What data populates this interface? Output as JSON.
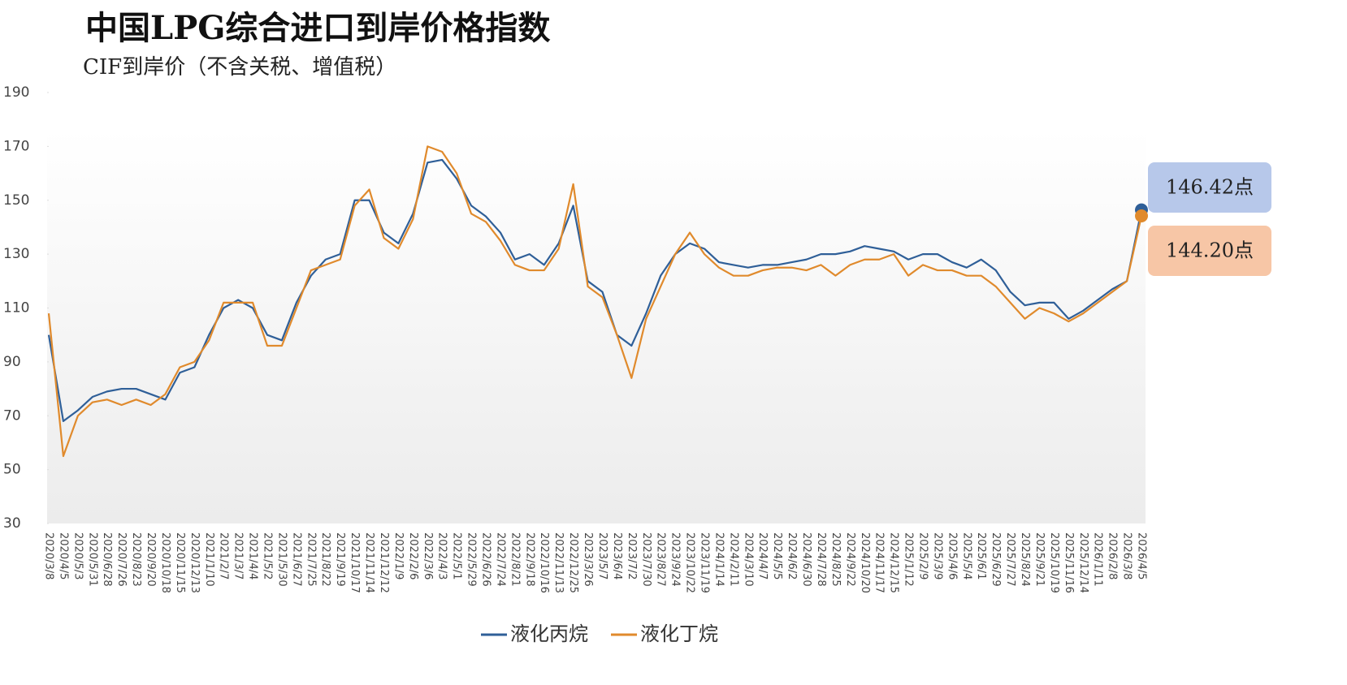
{
  "chart_data": {
    "type": "line",
    "title": "中国LPG综合进口到岸价格指数",
    "subtitle": "CIF到岸价（不含关税、增值税）",
    "categories": [
      "2020/3/8",
      "2020/4/5",
      "2020/5/3",
      "2020/5/31",
      "2020/6/28",
      "2020/7/26",
      "2020/8/23",
      "2020/9/20",
      "2020/10/18",
      "2020/11/15",
      "2020/12/13",
      "2021/1/10",
      "2021/2/7",
      "2021/3/7",
      "2021/4/4",
      "2021/5/2",
      "2021/5/30",
      "2021/6/27",
      "2021/7/25",
      "2021/8/22",
      "2021/9/19",
      "2021/10/17",
      "2021/11/14",
      "2021/12/12",
      "2022/1/9",
      "2022/2/6",
      "2022/3/6",
      "2022/4/3",
      "2022/5/1",
      "2022/5/29",
      "2022/6/26",
      "2022/7/24",
      "2022/8/21",
      "2022/9/18",
      "2022/10/16",
      "2022/11/13",
      "2022/12/25",
      "2023/3/26",
      "2023/5/7",
      "2023/6/4",
      "2023/7/2",
      "2023/7/30",
      "2023/8/27",
      "2023/9/24",
      "2023/10/22",
      "2023/11/19",
      "2024/1/14",
      "2024/2/11",
      "2024/3/10",
      "2024/4/7",
      "2024/5/5",
      "2024/6/2",
      "2024/6/30",
      "2024/7/28",
      "2024/8/25",
      "2024/9/22",
      "2024/10/20",
      "2024/11/17",
      "2024/12/15",
      "2025/1/12",
      "2025/2/9",
      "2025/3/9",
      "2025/4/6",
      "2025/5/4",
      "2025/6/1",
      "2025/6/29",
      "2025/7/27",
      "2025/8/24",
      "2025/9/21",
      "2025/10/19",
      "2025/11/16",
      "2025/12/14",
      "2026/1/11",
      "2026/2/8",
      "2026/3/8",
      "2026/4/5"
    ],
    "series": [
      {
        "name": "液化丙烷",
        "color": "#2f5f98",
        "label_color": "#b7c8ea",
        "values": [
          100,
          68,
          72,
          77,
          79,
          80,
          80,
          78,
          76,
          86,
          88,
          100,
          110,
          113,
          110,
          100,
          98,
          112,
          122,
          128,
          130,
          150,
          150,
          138,
          134,
          145,
          164,
          165,
          158,
          148,
          144,
          138,
          128,
          130,
          126,
          134,
          148,
          120,
          116,
          100,
          96,
          108,
          122,
          130,
          134,
          132,
          127,
          126,
          125,
          126,
          126,
          127,
          128,
          130,
          130,
          131,
          133,
          132,
          131,
          128,
          130,
          130,
          127,
          125,
          128,
          124,
          116,
          111,
          112,
          112,
          106,
          109,
          113,
          117,
          120,
          146.42
        ],
        "value_labels": [
          null,
          null,
          null,
          null,
          null,
          null,
          null,
          null,
          null,
          null,
          null,
          null,
          null,
          null,
          null,
          null,
          null,
          null,
          null,
          null,
          null,
          null,
          null,
          null,
          null,
          null,
          null,
          null,
          null,
          null,
          null,
          null,
          null,
          null,
          null,
          null,
          null,
          null,
          null,
          null,
          null,
          null,
          null,
          null,
          null,
          null,
          null,
          null,
          null,
          null,
          null,
          null,
          null,
          null,
          null,
          null,
          null,
          null,
          null,
          null,
          null,
          null,
          null,
          null,
          null,
          null,
          null,
          null,
          null,
          null,
          null,
          null,
          null,
          null,
          null,
          "146.42点"
        ]
      },
      {
        "name": "液化丁烷",
        "color": "#e08a2c",
        "label_color": "#f7c6a6",
        "values": [
          108,
          55,
          70,
          75,
          76,
          74,
          76,
          74,
          78,
          88,
          90,
          98,
          112,
          112,
          112,
          96,
          96,
          110,
          124,
          126,
          128,
          148,
          154,
          136,
          132,
          143,
          170,
          168,
          160,
          145,
          142,
          135,
          126,
          124,
          124,
          132,
          156,
          118,
          114,
          100,
          84,
          106,
          118,
          130,
          138,
          130,
          125,
          122,
          122,
          124,
          125,
          125,
          124,
          126,
          122,
          126,
          128,
          128,
          130,
          122,
          126,
          124,
          124,
          122,
          122,
          118,
          112,
          106,
          110,
          108,
          105,
          108,
          112,
          116,
          120,
          144.2
        ],
        "value_labels": [
          null,
          null,
          null,
          null,
          null,
          null,
          null,
          null,
          null,
          null,
          null,
          null,
          null,
          null,
          null,
          null,
          null,
          null,
          null,
          null,
          null,
          null,
          null,
          null,
          null,
          null,
          null,
          null,
          null,
          null,
          null,
          null,
          null,
          null,
          null,
          null,
          null,
          null,
          null,
          null,
          null,
          null,
          null,
          null,
          null,
          null,
          null,
          null,
          null,
          null,
          null,
          null,
          null,
          null,
          null,
          null,
          null,
          null,
          null,
          null,
          null,
          null,
          null,
          null,
          null,
          null,
          null,
          null,
          null,
          null,
          null,
          null,
          null,
          null,
          null,
          "144.20点"
        ]
      }
    ],
    "ylim": [
      30,
      190
    ],
    "yticks": [
      30,
      50,
      70,
      90,
      110,
      130,
      150,
      170,
      190
    ]
  }
}
